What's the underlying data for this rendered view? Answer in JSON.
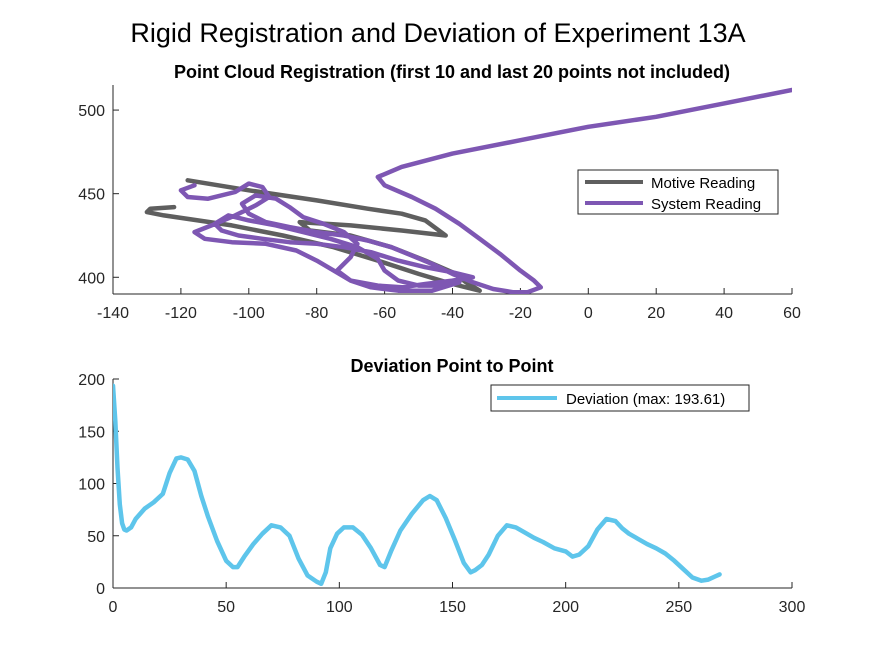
{
  "figure_title": "Rigid Registration and Deviation of Experiment 13A",
  "chart_data": [
    {
      "type": "line",
      "title": "Point Cloud Registration (first 10 and last 20 points not included)",
      "xlabel": "",
      "ylabel": "",
      "xlim": [
        -140,
        60
      ],
      "ylim": [
        390,
        515
      ],
      "xticks": [
        -140,
        -120,
        -100,
        -80,
        -60,
        -40,
        -20,
        0,
        20,
        40,
        60
      ],
      "yticks": [
        400,
        450,
        500
      ],
      "grid": false,
      "legend_position": "upper-right",
      "series": [
        {
          "name": "Motive Reading",
          "color": "#5f5f5f",
          "points": [
            [
              -118,
              458
            ],
            [
              -100,
              452
            ],
            [
              -80,
              446
            ],
            [
              -65,
              441
            ],
            [
              -55,
              438
            ],
            [
              -48,
              434
            ],
            [
              -42,
              425
            ],
            [
              -55,
              428
            ],
            [
              -70,
              431
            ],
            [
              -85,
              433
            ],
            [
              -82,
              428
            ],
            [
              -70,
              425
            ],
            [
              -58,
              418
            ],
            [
              -48,
              410
            ],
            [
              -40,
              403
            ],
            [
              -36,
              397
            ],
            [
              -32,
              392
            ],
            [
              -40,
              396
            ],
            [
              -50,
              402
            ],
            [
              -62,
              410
            ],
            [
              -75,
              418
            ],
            [
              -90,
              425
            ],
            [
              -105,
              431
            ],
            [
              -115,
              434
            ],
            [
              -125,
              437
            ],
            [
              -130,
              439
            ],
            [
              -129,
              441
            ],
            [
              -122,
              442
            ]
          ]
        },
        {
          "name": "System Reading",
          "color": "#7e57b3",
          "points": [
            [
              60,
              512
            ],
            [
              40,
              504
            ],
            [
              20,
              496
            ],
            [
              0,
              490
            ],
            [
              -20,
              482
            ],
            [
              -40,
              474
            ],
            [
              -55,
              466
            ],
            [
              -62,
              460
            ],
            [
              -60,
              455
            ],
            [
              -52,
              448
            ],
            [
              -45,
              441
            ],
            [
              -38,
              432
            ],
            [
              -32,
              423
            ],
            [
              -26,
              414
            ],
            [
              -20,
              404
            ],
            [
              -16,
              398
            ],
            [
              -14,
              394
            ],
            [
              -18,
              391
            ],
            [
              -22,
              391
            ],
            [
              -28,
              393
            ],
            [
              -34,
              397
            ],
            [
              -40,
              402
            ],
            [
              -46,
              408
            ],
            [
              -52,
              413
            ],
            [
              -58,
              418
            ],
            [
              -65,
              422
            ],
            [
              -72,
              425
            ],
            [
              -80,
              427
            ],
            [
              -88,
              430
            ],
            [
              -95,
              433
            ],
            [
              -100,
              438
            ],
            [
              -102,
              444
            ],
            [
              -98,
              449
            ],
            [
              -92,
              447
            ],
            [
              -88,
              442
            ],
            [
              -84,
              436
            ],
            [
              -78,
              432
            ],
            [
              -72,
              427
            ],
            [
              -68,
              420
            ],
            [
              -70,
              412
            ],
            [
              -74,
              404
            ],
            [
              -70,
              398
            ],
            [
              -62,
              395
            ],
            [
              -55,
              394
            ],
            [
              -48,
              396
            ],
            [
              -40,
              398
            ],
            [
              -34,
              400
            ],
            [
              -40,
              403
            ],
            [
              -48,
              406
            ],
            [
              -56,
              410
            ],
            [
              -64,
              415
            ],
            [
              -72,
              418
            ],
            [
              -80,
              420
            ],
            [
              -88,
              421
            ],
            [
              -96,
              423
            ],
            [
              -103,
              425
            ],
            [
              -108,
              428
            ],
            [
              -110,
              432
            ],
            [
              -106,
              437
            ],
            [
              -100,
              434
            ],
            [
              -92,
              431
            ],
            [
              -84,
              427
            ],
            [
              -76,
              423
            ],
            [
              -68,
              418
            ],
            [
              -62,
              411
            ],
            [
              -60,
              404
            ],
            [
              -56,
              398
            ],
            [
              -50,
              395
            ],
            [
              -44,
              395
            ],
            [
              -38,
              397
            ],
            [
              -46,
              392
            ],
            [
              -56,
              392
            ],
            [
              -64,
              394
            ],
            [
              -70,
              398
            ],
            [
              -75,
              404
            ],
            [
              -80,
              410
            ],
            [
              -86,
              416
            ],
            [
              -95,
              420
            ],
            [
              -105,
              421
            ],
            [
              -113,
              423
            ],
            [
              -116,
              427
            ],
            [
              -111,
              431
            ],
            [
              -104,
              437
            ],
            [
              -98,
              443
            ],
            [
              -94,
              448
            ],
            [
              -96,
              454
            ],
            [
              -100,
              456
            ],
            [
              -104,
              451
            ],
            [
              -112,
              447
            ],
            [
              -118,
              448
            ],
            [
              -120,
              452
            ],
            [
              -116,
              455
            ]
          ]
        }
      ]
    },
    {
      "type": "line",
      "title": "Deviation Point to Point",
      "xlabel": "",
      "ylabel": "",
      "xlim": [
        0,
        300
      ],
      "ylim": [
        0,
        200
      ],
      "xticks": [
        0,
        50,
        100,
        150,
        200,
        250,
        300
      ],
      "yticks": [
        0,
        50,
        100,
        150,
        200
      ],
      "grid": false,
      "legend_position": "upper-right",
      "series": [
        {
          "name": "Deviation (max: 193.61)",
          "color": "#5ec5eb",
          "x": [
            0,
            1,
            2,
            3,
            4,
            5,
            6,
            8,
            10,
            14,
            18,
            22,
            25,
            28,
            30,
            33,
            36,
            39,
            42,
            46,
            50,
            53,
            55,
            58,
            62,
            66,
            70,
            74,
            78,
            82,
            86,
            90,
            92,
            94,
            96,
            99,
            102,
            106,
            110,
            114,
            118,
            120,
            123,
            127,
            132,
            137,
            140,
            143,
            147,
            151,
            155,
            158,
            160,
            163,
            166,
            170,
            174,
            178,
            182,
            186,
            190,
            195,
            200,
            203,
            206,
            210,
            214,
            218,
            222,
            225,
            228,
            232,
            236,
            240,
            244,
            248,
            252,
            256,
            260,
            263,
            266,
            268
          ],
          "y": [
            193.61,
            160,
            115,
            80,
            62,
            56,
            55,
            58,
            66,
            76,
            82,
            90,
            110,
            124,
            125,
            123,
            112,
            88,
            68,
            45,
            26,
            20,
            20,
            30,
            42,
            52,
            60,
            58,
            50,
            28,
            12,
            6,
            4,
            15,
            38,
            52,
            58,
            58,
            51,
            38,
            22,
            20,
            36,
            55,
            71,
            84,
            88,
            84,
            67,
            46,
            24,
            15,
            17,
            22,
            32,
            50,
            60,
            58,
            53,
            48,
            44,
            38,
            35,
            30,
            32,
            40,
            56,
            66,
            64,
            57,
            52,
            47,
            42,
            38,
            33,
            26,
            18,
            10,
            7,
            8,
            11,
            13
          ]
        }
      ]
    }
  ]
}
